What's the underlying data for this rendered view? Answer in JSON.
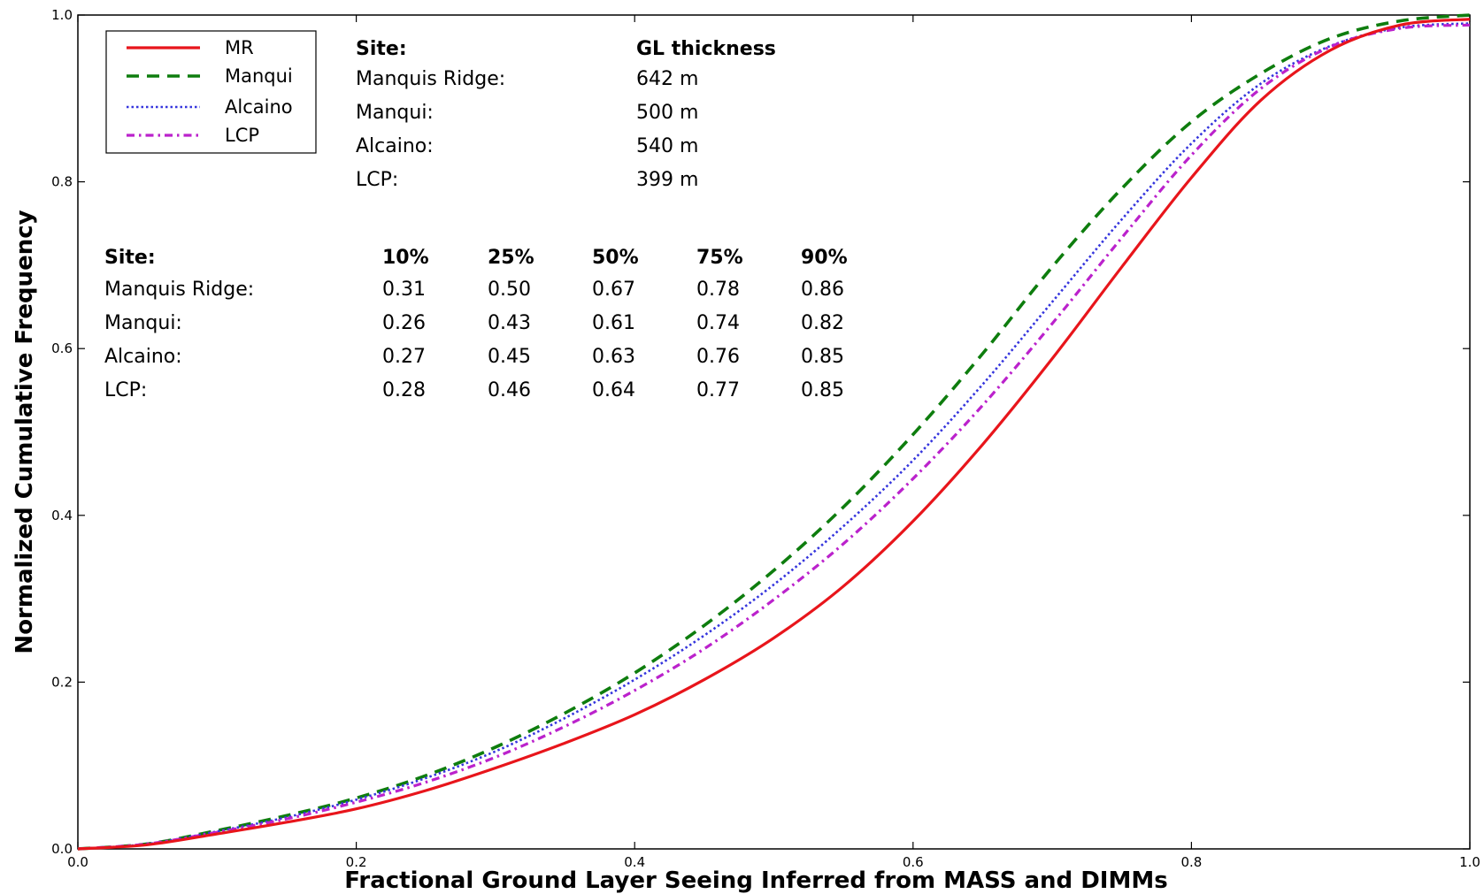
{
  "chart_data": {
    "type": "line",
    "title": "",
    "xlabel": "Fractional Ground Layer Seeing Inferred from MASS and DIMMs",
    "ylabel": "Normalized Cumulative Frequency",
    "xlim": [
      0.0,
      1.0
    ],
    "ylim": [
      0.0,
      1.0
    ],
    "xticks": [
      "0.0",
      "0.2",
      "0.4",
      "0.6",
      "0.8",
      "1.0"
    ],
    "yticks": [
      "0.0",
      "0.2",
      "0.4",
      "0.6",
      "0.8",
      "1.0"
    ],
    "grid": false,
    "legend_position": "top-left",
    "x": [
      0.0,
      0.05,
      0.1,
      0.15,
      0.2,
      0.25,
      0.3,
      0.35,
      0.4,
      0.45,
      0.5,
      0.55,
      0.6,
      0.65,
      0.7,
      0.75,
      0.8,
      0.85,
      0.9,
      0.95,
      1.0
    ],
    "series": [
      {
        "name": "MR",
        "color": "#e8151b",
        "dash": "solid",
        "values": [
          0.0,
          0.005,
          0.018,
          0.032,
          0.048,
          0.07,
          0.097,
          0.127,
          0.161,
          0.203,
          0.253,
          0.315,
          0.393,
          0.485,
          0.588,
          0.698,
          0.805,
          0.898,
          0.958,
          0.988,
          0.995
        ]
      },
      {
        "name": "Manqui",
        "color": "#0e7d0e",
        "dash": "dashed",
        "values": [
          0.0,
          0.006,
          0.022,
          0.04,
          0.061,
          0.088,
          0.122,
          0.163,
          0.211,
          0.268,
          0.334,
          0.41,
          0.497,
          0.594,
          0.698,
          0.792,
          0.872,
          0.93,
          0.972,
          0.993,
          1.0
        ]
      },
      {
        "name": "Alcaino",
        "color": "#3535dd",
        "dash": "dotted",
        "values": [
          0.0,
          0.006,
          0.021,
          0.038,
          0.059,
          0.085,
          0.117,
          0.157,
          0.203,
          0.256,
          0.317,
          0.387,
          0.466,
          0.557,
          0.656,
          0.755,
          0.846,
          0.918,
          0.963,
          0.985,
          0.99
        ]
      },
      {
        "name": "LCP",
        "color": "#bb22cc",
        "dash": "dashdot",
        "values": [
          0.0,
          0.006,
          0.02,
          0.036,
          0.056,
          0.08,
          0.11,
          0.147,
          0.19,
          0.24,
          0.299,
          0.366,
          0.444,
          0.532,
          0.63,
          0.733,
          0.832,
          0.912,
          0.962,
          0.984,
          0.988
        ]
      }
    ],
    "annotations": {
      "gl_header": {
        "site": "Site:",
        "value": "GL thickness"
      },
      "gl_rows": [
        {
          "site": "Manquis Ridge:",
          "value": "642 m"
        },
        {
          "site": "Manqui:",
          "value": "500 m"
        },
        {
          "site": "Alcaino:",
          "value": "540 m"
        },
        {
          "site": "LCP:",
          "value": "399 m"
        }
      ],
      "pct_header": [
        "Site:",
        "10%",
        "25%",
        "50%",
        "75%",
        "90%"
      ],
      "pct_rows": [
        [
          "Manquis Ridge:",
          "0.31",
          "0.50",
          "0.67",
          "0.78",
          "0.86"
        ],
        [
          "Manqui:",
          "0.26",
          "0.43",
          "0.61",
          "0.74",
          "0.82"
        ],
        [
          "Alcaino:",
          "0.27",
          "0.45",
          "0.63",
          "0.76",
          "0.85"
        ],
        [
          "LCP:",
          "0.28",
          "0.46",
          "0.64",
          "0.77",
          "0.85"
        ]
      ]
    }
  }
}
